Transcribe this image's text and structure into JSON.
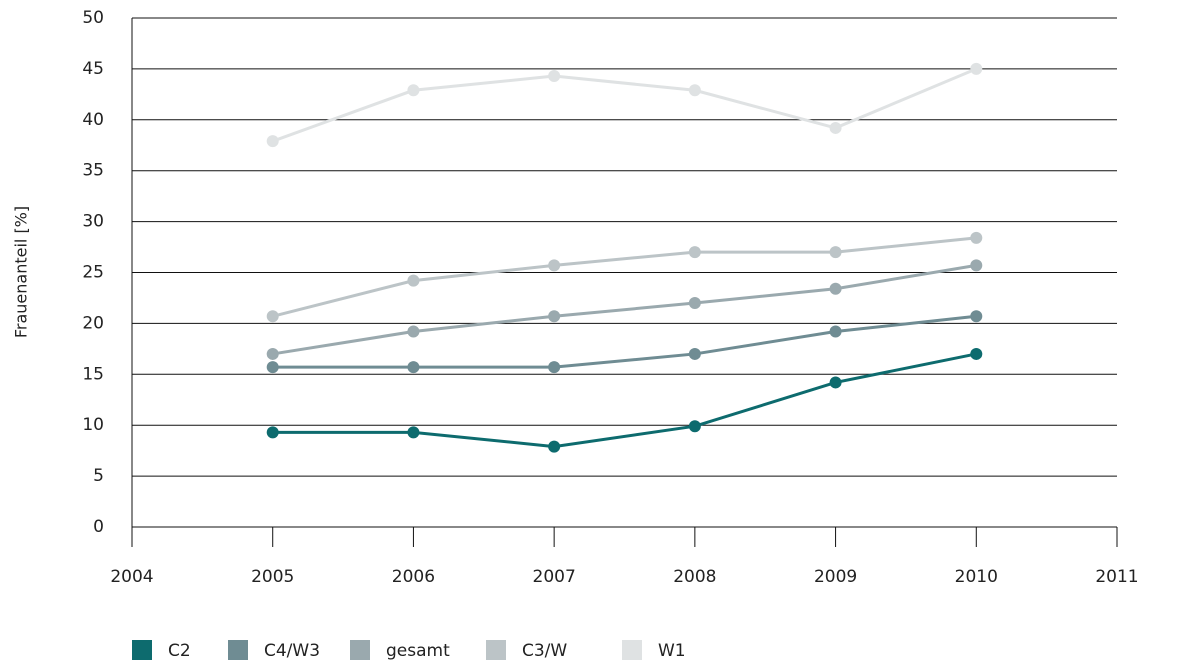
{
  "chart_data": {
    "type": "line",
    "y_label": "Frauenanteil [%]",
    "x": [
      2005,
      2006,
      2007,
      2008,
      2009,
      2010
    ],
    "series": [
      {
        "name": "C2",
        "color": "#0d6b6e",
        "values": [
          9.3,
          9.3,
          7.9,
          9.9,
          14.2,
          17.0
        ]
      },
      {
        "name": "C4/W3",
        "color": "#6f8c93",
        "values": [
          15.7,
          15.7,
          15.7,
          17.0,
          19.2,
          20.7
        ]
      },
      {
        "name": "gesamt",
        "color": "#9aa9ae",
        "values": [
          17.0,
          19.2,
          20.7,
          22.0,
          23.4,
          25.7
        ]
      },
      {
        "name": "C3/W",
        "color": "#bcc4c7",
        "values": [
          20.7,
          24.2,
          25.7,
          27.0,
          27.0,
          28.4
        ]
      },
      {
        "name": "W1",
        "color": "#dfe2e3",
        "values": [
          37.9,
          42.9,
          44.3,
          42.9,
          39.2,
          45.0
        ]
      }
    ],
    "xlim": [
      2004,
      2011
    ],
    "xticks": [
      2004,
      2005,
      2006,
      2007,
      2008,
      2009,
      2010,
      2011
    ],
    "ylim": [
      0,
      50
    ],
    "yticks": [
      0,
      5,
      10,
      15,
      20,
      25,
      30,
      35,
      40,
      45,
      50
    ],
    "grid": true,
    "legend": "bottom"
  }
}
